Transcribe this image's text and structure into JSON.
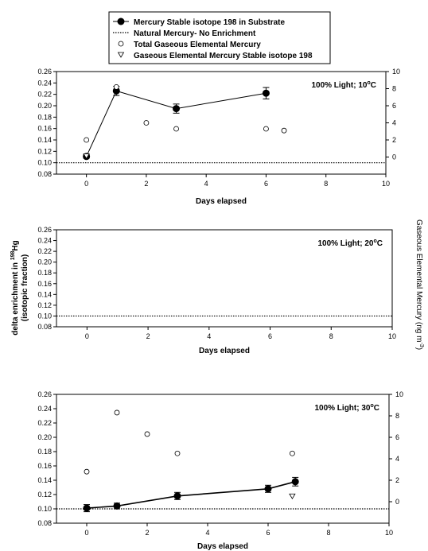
{
  "legend": {
    "items": [
      {
        "label": "Mercury Stable isotope 198 in Substrate",
        "symbol": "filled-circle-line"
      },
      {
        "label": "Natural Mercury- No Enrichment",
        "symbol": "dotted-line"
      },
      {
        "label": "Total Gaseous Elemental Mercury",
        "symbol": "open-circle"
      },
      {
        "label": "Gaseous Elemental Mercury Stable isotope 198",
        "symbol": "open-triangle-down"
      }
    ]
  },
  "y_left_title": {
    "line1": "delta enrichment in ",
    "isotope": "198",
    "element": "Hg",
    "line2": "(isotopic fraction)"
  },
  "y_right_title": "Gaseous Elemental Mercury (ng m",
  "y_right_title_exp": "-3",
  "y_right_title_end": ")",
  "chart_data": [
    {
      "type": "scatter",
      "note": "100% Light; 10",
      "note_unit": "oC",
      "xlabel": "Days elapsed",
      "xlim": [
        -1,
        10
      ],
      "x_ticks": [
        0,
        2,
        4,
        6,
        8,
        10
      ],
      "ylim": [
        0.08,
        0.26
      ],
      "y_ticks": [
        0.08,
        0.1,
        0.12,
        0.14,
        0.16,
        0.18,
        0.2,
        0.22,
        0.24,
        0.26
      ],
      "y2lim": [
        -2,
        10
      ],
      "y2_ticks": [
        0,
        2,
        4,
        6,
        8,
        10
      ],
      "baseline": 0.1,
      "series": [
        {
          "name": "Mercury Stable isotope 198 in Substrate",
          "x": [
            0,
            1,
            3,
            6
          ],
          "y": [
            0.111,
            0.226,
            0.195,
            0.222
          ],
          "err": [
            0.003,
            0.008,
            0.008,
            0.01
          ]
        },
        {
          "name": "Total Gaseous Elemental Mercury",
          "axis": "right",
          "x": [
            0,
            1,
            2,
            3,
            6,
            6.6
          ],
          "y": [
            2.0,
            8.2,
            4.0,
            3.3,
            3.3,
            3.1
          ]
        },
        {
          "name": "Gaseous Elemental Mercury Stable isotope 198",
          "axis": "right",
          "x": [
            0
          ],
          "y": [
            0.1
          ]
        }
      ]
    },
    {
      "type": "scatter",
      "note": "100% Light; 20",
      "note_unit": "oC",
      "xlabel": "Days elapsed",
      "xlim": [
        -1,
        10
      ],
      "x_ticks": [
        0,
        2,
        4,
        6,
        8,
        10
      ],
      "ylim": [
        0.08,
        0.26
      ],
      "y_ticks": [
        0.08,
        0.1,
        0.12,
        0.14,
        0.16,
        0.18,
        0.2,
        0.22,
        0.24,
        0.26
      ],
      "baseline": 0.1,
      "series": []
    },
    {
      "type": "scatter",
      "note": "100% Light; 30",
      "note_unit": "oC",
      "xlabel": "Days elapsed",
      "xlim": [
        -1,
        10
      ],
      "x_ticks": [
        0,
        2,
        4,
        6,
        8,
        10
      ],
      "ylim": [
        0.08,
        0.26
      ],
      "y_ticks": [
        0.08,
        0.1,
        0.12,
        0.14,
        0.16,
        0.18,
        0.2,
        0.22,
        0.24,
        0.26
      ],
      "y2lim": [
        -2,
        10
      ],
      "y2_ticks": [
        0,
        2,
        4,
        6,
        8,
        10
      ],
      "baseline": 0.1,
      "series": [
        {
          "name": "Mercury Stable isotope 198 in Substrate",
          "x": [
            0,
            1,
            3,
            6,
            6.9
          ],
          "y": [
            0.101,
            0.104,
            0.118,
            0.128,
            0.138
          ],
          "err": [
            0.005,
            0.004,
            0.005,
            0.005,
            0.006
          ]
        },
        {
          "name": "Total Gaseous Elemental Mercury",
          "axis": "right",
          "x": [
            0,
            1,
            2,
            3,
            6.8
          ],
          "y": [
            2.8,
            8.3,
            6.3,
            4.5,
            4.5
          ]
        },
        {
          "name": "Gaseous Elemental Mercury Stable isotope 198",
          "axis": "right",
          "x": [
            6.8
          ],
          "y": [
            0.5
          ]
        }
      ]
    }
  ]
}
